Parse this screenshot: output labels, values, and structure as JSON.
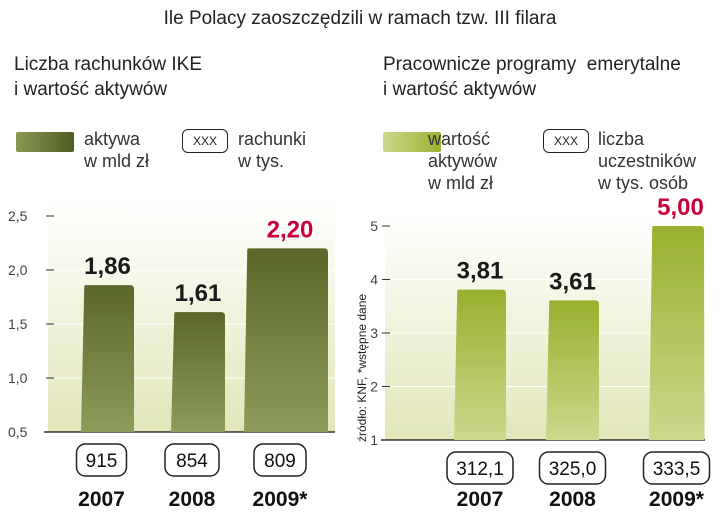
{
  "title": "Ile Polacy zaoszczędzili w ramach tzw. III filara",
  "source": "źródło: KNF, *wstępne dane",
  "colors": {
    "dark_bar": "#5e6b2c",
    "light_bar": "#a5bb3c",
    "highlight": "#c8003c",
    "label": "#1a1a1a"
  },
  "panels": {
    "ike": {
      "subtitle_1": "Liczba rachunków IKE",
      "subtitle_2": "i wartość aktywów",
      "legend_bar_1": "aktywa",
      "legend_bar_2": "w mld zł",
      "legend_box": "XXX",
      "legend_box_text_1": "rachunki",
      "legend_box_text_2": "w tys."
    },
    "ppe": {
      "subtitle_1": "Pracownicze programy  emerytalne",
      "subtitle_2": "i wartość aktywów",
      "legend_bar_1": "wartość",
      "legend_bar_2": "aktywów",
      "legend_bar_3": "w mld zł",
      "legend_box": "XXX",
      "legend_box_text_1": "liczba",
      "legend_box_text_2": "uczestników",
      "legend_box_text_3": "w tys. osób"
    }
  },
  "chart_data": [
    {
      "type": "bar",
      "title": "Liczba rachunków IKE i wartość aktywów",
      "categories": [
        "2007",
        "2008",
        "2009*"
      ],
      "values": [
        1.86,
        1.61,
        2.2
      ],
      "value_labels": [
        "1,86",
        "1,61",
        "2,20"
      ],
      "counts": [
        "915",
        "854",
        "809"
      ],
      "ylim": [
        0.5,
        2.5
      ],
      "yticks": [
        0.5,
        1.0,
        1.5,
        2.0,
        2.5
      ],
      "ytick_labels": [
        "0,5",
        "1,0",
        "1,5",
        "2,0",
        "2,5"
      ],
      "series_name": "aktywa w mld zł",
      "count_name": "rachunki w tys.",
      "highlight_index": 2
    },
    {
      "type": "bar",
      "title": "Pracownicze programy emerytalne i wartość aktywów",
      "categories": [
        "2007",
        "2008",
        "2009*"
      ],
      "values": [
        3.81,
        3.61,
        5.0
      ],
      "value_labels": [
        "3,81",
        "3,61",
        "5,00"
      ],
      "counts": [
        "312,1",
        "325,0",
        "333,5"
      ],
      "ylim": [
        1,
        5
      ],
      "yticks": [
        1,
        2,
        3,
        4,
        5
      ],
      "ytick_labels": [
        "1",
        "2",
        "3",
        "4",
        "5"
      ],
      "series_name": "wartość aktywów w mld zł",
      "count_name": "liczba uczestników w tys. osób",
      "highlight_index": 2
    }
  ]
}
